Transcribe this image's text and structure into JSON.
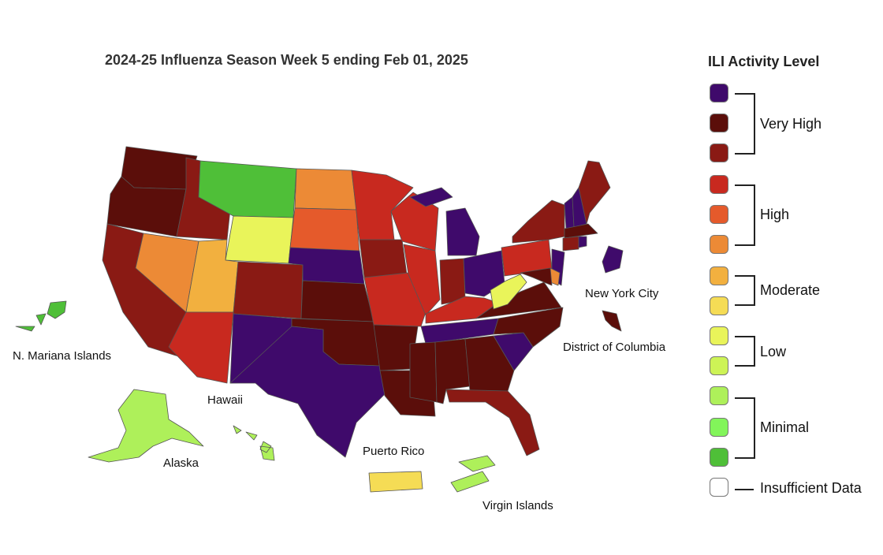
{
  "title": "2024-25 Influenza Season Week 5 ending Feb 01, 2025",
  "legend": {
    "title": "ILI Activity Level",
    "groups": {
      "very_high": "Very High",
      "high": "High",
      "moderate": "Moderate",
      "low": "Low",
      "minimal": "Minimal",
      "insufficient": "Insufficient Data"
    },
    "levels": [
      {
        "level": 13,
        "color": "#3f0a6b"
      },
      {
        "level": 12,
        "color": "#5b0e0a"
      },
      {
        "level": 11,
        "color": "#8a1a14"
      },
      {
        "level": 10,
        "color": "#c8291f"
      },
      {
        "level": 9,
        "color": "#e55a2b"
      },
      {
        "level": 8,
        "color": "#ec8a36"
      },
      {
        "level": 7,
        "color": "#f2b03f"
      },
      {
        "level": 6,
        "color": "#f5dc55"
      },
      {
        "level": 5,
        "color": "#e9f45a"
      },
      {
        "level": 4,
        "color": "#cdf356"
      },
      {
        "level": 3,
        "color": "#aef05a"
      },
      {
        "level": 2,
        "color": "#82f55a"
      },
      {
        "level": 1,
        "color": "#4fbf38"
      },
      {
        "level": 0,
        "color": "#ffffff"
      }
    ]
  },
  "labels": {
    "n_mariana": "N. Mariana Islands",
    "hawaii": "Hawaii",
    "alaska": "Alaska",
    "puerto_rico": "Puerto Rico",
    "virgin_islands": "Virgin Islands",
    "nyc": "New York City",
    "dc": "District of Columbia"
  },
  "state_levels": {
    "Washington": 12,
    "Oregon": 12,
    "California": 11,
    "Idaho": 11,
    "Nevada": 8,
    "Montana": 1,
    "Wyoming": 5,
    "Utah": 7,
    "Arizona": 10,
    "Colorado": 11,
    "New Mexico": 13,
    "North Dakota": 8,
    "South Dakota": 9,
    "Nebraska": 13,
    "Kansas": 12,
    "Oklahoma": 12,
    "Texas": 13,
    "Minnesota": 10,
    "Iowa": 11,
    "Missouri": 10,
    "Arkansas": 12,
    "Louisiana": 12,
    "Wisconsin": 10,
    "Illinois": 10,
    "Michigan": 13,
    "Indiana": 11,
    "Ohio": 13,
    "Kentucky": 10,
    "Tennessee": 13,
    "Mississippi": 12,
    "Alabama": 12,
    "Georgia": 12,
    "Florida": 11,
    "South Carolina": 13,
    "North Carolina": 12,
    "Virginia": 12,
    "West Virginia": 5,
    "Pennsylvania": 10,
    "New York": 11,
    "Vermont": 13,
    "New Hampshire": 13,
    "Maine": 11,
    "Massachusetts": 12,
    "Connecticut": 11,
    "Rhode Island": 13,
    "New Jersey": 13,
    "Delaware": 8,
    "Maryland": 12,
    "New York City": 13,
    "District of Columbia": 12,
    "Alaska": 3,
    "Hawaii": 3,
    "Puerto Rico": 6,
    "Virgin Islands": 3,
    "N. Mariana Islands": 1
  }
}
